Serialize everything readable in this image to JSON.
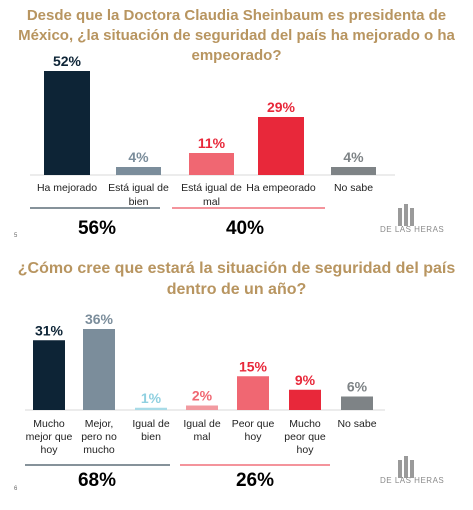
{
  "chart_data": [
    {
      "type": "bar",
      "title": "Desde que la Doctora Claudia Sheinbaum es presidenta de México, ¿la situación de seguridad del país ha mejorado o ha empeorado?",
      "categories": [
        "Ha mejorado",
        "Está igual de bien",
        "Está igual de mal",
        "Ha empeorado",
        "No sabe"
      ],
      "values": [
        52,
        4,
        11,
        29,
        4
      ],
      "value_labels": [
        "52%",
        "4%",
        "11%",
        "29%",
        "4%"
      ],
      "colors": [
        "#0d2436",
        "#7b8d9b",
        "#f06772",
        "#e8283a",
        "#7e8386"
      ],
      "label_colors": [
        "#0d2436",
        "#7b8d9b",
        "#e8283a",
        "#e8283a",
        "#7e8386"
      ],
      "totals": [
        {
          "label": "56%",
          "color": "#0d2436"
        },
        {
          "label": "40%",
          "color": "#e8283a"
        }
      ],
      "ylim": [
        0,
        55
      ],
      "grid": false
    },
    {
      "type": "bar",
      "title": "¿Cómo cree que estará la situación de seguridad del país dentro de un año?",
      "categories": [
        "Mucho mejor que hoy",
        "Mejor, pero no mucho",
        "Igual de bien",
        "Igual de mal",
        "Peor que hoy",
        "Mucho peor que hoy",
        "No sabe"
      ],
      "values": [
        31,
        36,
        1,
        2,
        15,
        9,
        6
      ],
      "value_labels": [
        "31%",
        "36%",
        "1%",
        "2%",
        "15%",
        "9%",
        "6%"
      ],
      "colors": [
        "#0d2436",
        "#7b8d9b",
        "#a8dbe7",
        "#f29aa0",
        "#f06772",
        "#e8283a",
        "#7e8386"
      ],
      "label_colors": [
        "#0d2436",
        "#7b8d9b",
        "#8fd0e0",
        "#f06772",
        "#e8283a",
        "#e8283a",
        "#7e8386"
      ],
      "totals": [
        {
          "label": "68%",
          "color": "#0d2436"
        },
        {
          "label": "26%",
          "color": "#e8283a"
        }
      ],
      "ylim": [
        0,
        40
      ],
      "grid": false
    }
  ],
  "branding": {
    "logo_text": "DE LAS HERAS",
    "page_mark_1": "5",
    "page_mark_2": "6"
  }
}
